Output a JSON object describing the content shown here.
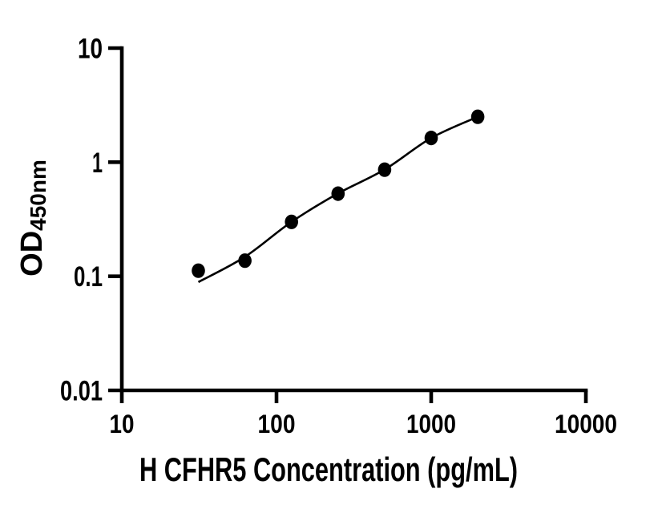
{
  "figure": {
    "background_color": "#ffffff",
    "ink_color": "#000000"
  },
  "chart_data": {
    "type": "scatter",
    "title": "",
    "xlabel": "H CFHR5 Concentration (pg/mL)",
    "ylabel": "OD450nm",
    "ylabel_main": "OD",
    "ylabel_subscript": "450nm",
    "x_scale": "log10",
    "y_scale": "log10",
    "xlim": [
      10,
      10000
    ],
    "ylim": [
      0.01,
      10
    ],
    "x_ticks": {
      "values": [
        10,
        100,
        1000,
        10000
      ],
      "labels": [
        "10",
        "100",
        "1000",
        "10000"
      ]
    },
    "y_ticks": {
      "values": [
        10,
        1,
        0.1,
        0.01
      ],
      "labels": [
        "10",
        "1",
        "0.1",
        "0.01"
      ]
    },
    "grid": false,
    "legend": "none",
    "series": [
      {
        "name": "standard-curve-points",
        "marker": "filled-circle",
        "color": "#000000",
        "x": [
          31.25,
          62.5,
          125,
          250,
          500,
          1000,
          2000
        ],
        "y": [
          0.112,
          0.137,
          0.3,
          0.53,
          0.86,
          1.63,
          2.5
        ]
      }
    ],
    "fit_line": {
      "name": "fitted-standard-curve",
      "color": "#000000",
      "x": [
        31.25,
        62.5,
        125,
        250,
        500,
        1000,
        2000
      ],
      "y": [
        0.089,
        0.148,
        0.3,
        0.532,
        0.862,
        1.63,
        2.5
      ]
    }
  }
}
